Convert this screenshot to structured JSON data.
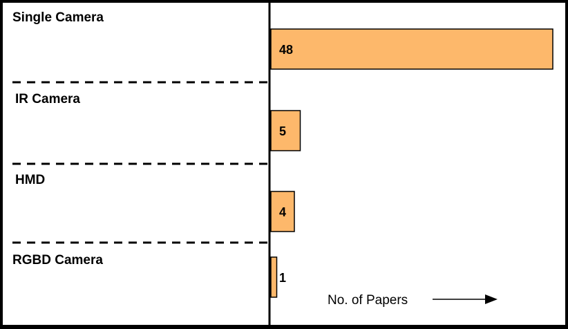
{
  "chart_data": {
    "type": "bar",
    "orientation": "horizontal",
    "categories": [
      "Single Camera",
      "IR Camera",
      "HMD",
      "RGBD Camera"
    ],
    "values": [
      48,
      5,
      4,
      1
    ],
    "title": "",
    "xlabel": "No. of Papers",
    "ylabel": "",
    "xlim": [
      0,
      48
    ],
    "grid": false,
    "legend": "none",
    "bar_color": "#FDB86B",
    "bar_edge_color": "#000000",
    "separator_style": "dashed"
  }
}
